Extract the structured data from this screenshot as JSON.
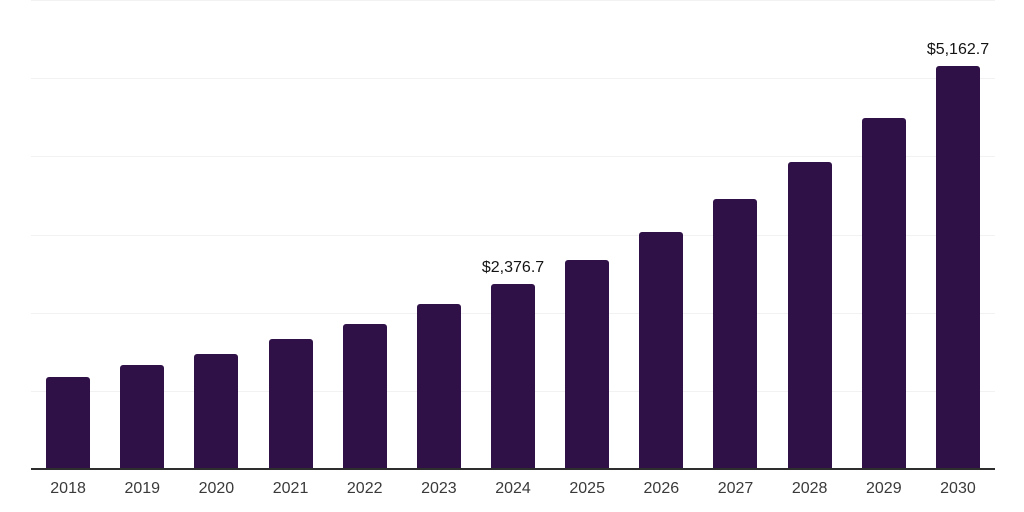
{
  "page": {
    "background": "#FFFFFF"
  },
  "chart_data": {
    "type": "bar",
    "title": "",
    "xlabel": "",
    "ylabel": "",
    "categories": [
      "2018",
      "2019",
      "2020",
      "2021",
      "2022",
      "2023",
      "2024",
      "2025",
      "2026",
      "2027",
      "2028",
      "2029",
      "2030"
    ],
    "values": [
      1190,
      1340,
      1485,
      1675,
      1870,
      2120,
      2376.7,
      2690,
      3050,
      3465,
      3935,
      4505,
      5162.7
    ],
    "value_labels": [
      null,
      null,
      null,
      null,
      null,
      null,
      "$2,376.7",
      null,
      null,
      null,
      null,
      null,
      "$5,162.7"
    ],
    "ylim": [
      0,
      6000
    ],
    "grid_values": [
      1000,
      2000,
      3000,
      4000,
      5000,
      6000
    ],
    "grid": "horizontal-only",
    "legend": "none",
    "y_tick_labels_visible": false,
    "colors": {
      "bar": "#2F1148",
      "gridline": "#F2F2F2",
      "axis_line": "#2E2E2E",
      "tick_label": "#3A3A3A",
      "value_label": "#141414",
      "background": "#FFFFFF"
    }
  }
}
